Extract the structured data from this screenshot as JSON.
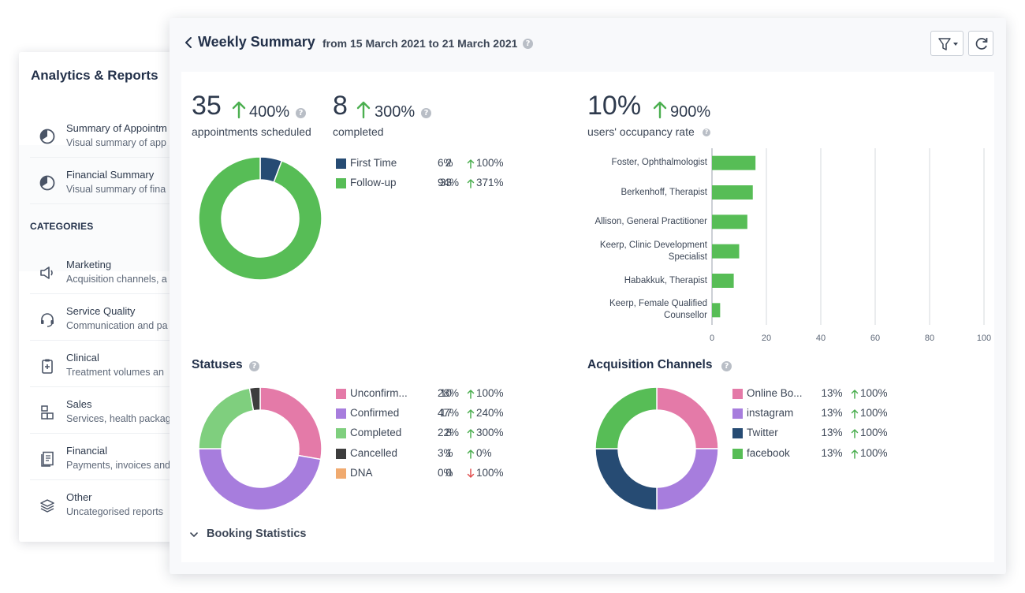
{
  "back_panel": {
    "title": "Analytics & Reports",
    "reports": [
      {
        "title": "Summary of Appointm",
        "desc": "Visual summary of app",
        "icon": "pie-chart-icon"
      },
      {
        "title": "Financial Summary",
        "desc": "Visual summary of fina",
        "icon": "pie-chart-icon"
      }
    ],
    "categories_label": "CATEGORIES",
    "categories": [
      {
        "title": "Marketing",
        "desc": "Acquisition channels, a",
        "icon": "megaphone-icon"
      },
      {
        "title": "Service Quality",
        "desc": "Communication and pa",
        "icon": "headset-icon"
      },
      {
        "title": "Clinical",
        "desc": "Treatment volumes an",
        "icon": "clipboard-icon"
      },
      {
        "title": "Sales",
        "desc": "Services, health packag",
        "icon": "boxes-icon"
      },
      {
        "title": "Financial",
        "desc": "Payments, invoices and",
        "icon": "invoice-icon"
      },
      {
        "title": "Other",
        "desc": "Uncategorised reports",
        "icon": "layers-icon"
      }
    ]
  },
  "header": {
    "title": "Weekly Summary",
    "range": "from 15 March 2021 to 21 March 2021",
    "help": "?"
  },
  "kpis": {
    "scheduled": {
      "value": "35",
      "change": "400%",
      "label": "appointments scheduled"
    },
    "completed": {
      "value": "8",
      "change": "300%",
      "label": "completed"
    },
    "occupancy": {
      "value": "10%",
      "change": "900%",
      "label": "users' occupancy rate"
    }
  },
  "colors": {
    "green": "#57bd56",
    "navy": "#264b73",
    "pink": "#e47aa8",
    "purple": "#a77ddd",
    "light_green": "#7fcf7e",
    "dark": "#3d3d3d",
    "orange": "#f0aa6f",
    "up_arrow": "#4caf50",
    "down_arrow": "#e05050"
  },
  "appointments_legend": [
    {
      "label": "First Time",
      "count": "2",
      "pct": "6%",
      "trend": "100%",
      "dir": "up",
      "color": "#264b73"
    },
    {
      "label": "Follow-up",
      "count": "33",
      "pct": "94%",
      "trend": "371%",
      "dir": "up",
      "color": "#57bd56"
    }
  ],
  "statuses": {
    "title": "Statuses",
    "legend": [
      {
        "label": "Unconfirm...",
        "count": "10",
        "pct": "28%",
        "trend": "100%",
        "dir": "up",
        "color": "#e47aa8"
      },
      {
        "label": "Confirmed",
        "count": "17",
        "pct": "47%",
        "trend": "240%",
        "dir": "up",
        "color": "#a77ddd"
      },
      {
        "label": "Completed",
        "count": "8",
        "pct": "22%",
        "trend": "300%",
        "dir": "up",
        "color": "#7fcf7e"
      },
      {
        "label": "Cancelled",
        "count": "1",
        "pct": "3%",
        "trend": "0%",
        "dir": "up",
        "color": "#3d3d3d"
      },
      {
        "label": "DNA",
        "count": "0",
        "pct": "0%",
        "trend": "100%",
        "dir": "down",
        "color": "#f0aa6f"
      }
    ]
  },
  "acquisition": {
    "title": "Acquisition Channels",
    "legend": [
      {
        "label": "Online Bo...",
        "count": "1",
        "pct": "3%",
        "trend": "100%",
        "dir": "up",
        "color": "#e47aa8"
      },
      {
        "label": "instagram",
        "count": "1",
        "pct": "3%",
        "trend": "100%",
        "dir": "up",
        "color": "#a77ddd"
      },
      {
        "label": "Twitter",
        "count": "1",
        "pct": "3%",
        "trend": "100%",
        "dir": "up",
        "color": "#264b73"
      },
      {
        "label": "facebook",
        "count": "1",
        "pct": "3%",
        "trend": "100%",
        "dir": "up",
        "color": "#57bd56"
      }
    ]
  },
  "booking_statistics": "Booking Statistics",
  "chart_data": [
    {
      "type": "pie",
      "categories": [
        "First Time",
        "Follow-up"
      ],
      "values": [
        2,
        33
      ],
      "colors": [
        "#264b73",
        "#57bd56"
      ],
      "title": "",
      "donut": true
    },
    {
      "type": "bar",
      "orientation": "horizontal",
      "categories": [
        "Foster, Ophthalmologist",
        "Berkenhoff, Therapist",
        "Allison, General Practitioner",
        "Keerp, Clinic Development Specialist",
        "Habakkuk, Therapist",
        "Keerp, Female Qualified Counsellor"
      ],
      "values": [
        16,
        15,
        13,
        10,
        8,
        3
      ],
      "xlim": [
        0,
        100
      ],
      "xticks": [
        "0",
        "20",
        "40",
        "60",
        "80",
        "100"
      ],
      "grid": true,
      "color": "#57bd56",
      "title": "",
      "xlabel": "",
      "ylabel": ""
    },
    {
      "type": "pie",
      "title": "Statuses",
      "categories": [
        "Unconfirm...",
        "Confirmed",
        "Completed",
        "Cancelled",
        "DNA"
      ],
      "values": [
        10,
        17,
        8,
        1,
        0
      ],
      "colors": [
        "#e47aa8",
        "#a77ddd",
        "#7fcf7e",
        "#3d3d3d",
        "#f0aa6f"
      ],
      "donut": true
    },
    {
      "type": "pie",
      "title": "Acquisition Channels",
      "categories": [
        "Online Bo...",
        "instagram",
        "Twitter",
        "facebook"
      ],
      "values": [
        1,
        1,
        1,
        1
      ],
      "colors": [
        "#e47aa8",
        "#a77ddd",
        "#264b73",
        "#57bd56"
      ],
      "donut": true
    }
  ]
}
